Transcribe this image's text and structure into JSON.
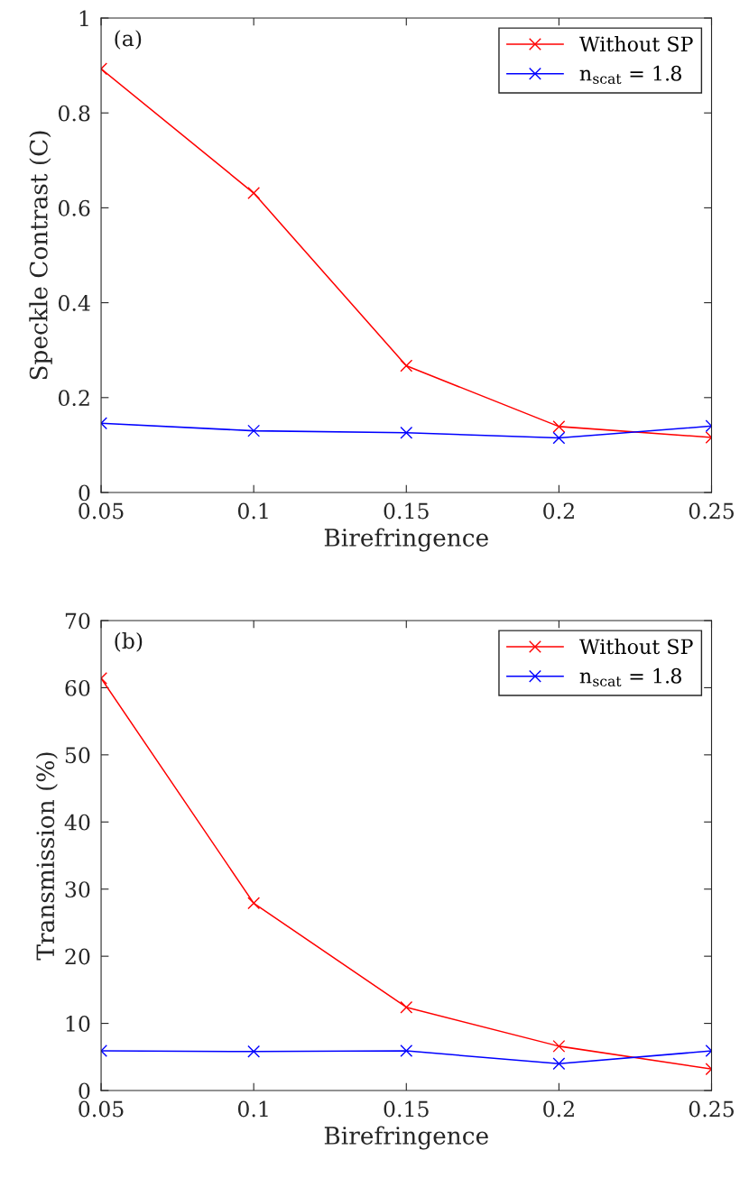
{
  "chart_data": [
    {
      "type": "line",
      "xlabel": "Birefringence",
      "ylabel": "Speckle Contrast (C)",
      "annotations": [
        "(a)"
      ],
      "x": [
        0.05,
        0.1,
        0.15,
        0.2,
        0.25
      ],
      "series": [
        {
          "name": "Without SP",
          "color": "#ff0000",
          "values": [
            0.893,
            0.631,
            0.267,
            0.139,
            0.116
          ]
        },
        {
          "name": "n$_{scat}$ = 1.8",
          "color": "#0000ff",
          "values": [
            0.146,
            0.13,
            0.126,
            0.115,
            0.14
          ]
        }
      ],
      "xlim": [
        0.05,
        0.25
      ],
      "xticks": [
        0.05,
        0.1,
        0.15,
        0.2,
        0.25
      ],
      "ylim": [
        0,
        1
      ],
      "yticks": [
        0,
        0.2,
        0.4,
        0.6,
        0.8,
        1
      ],
      "legend": "top right",
      "marker": "cross",
      "line_style": "solid",
      "grid": false
    },
    {
      "type": "line",
      "xlabel": "Birefringence",
      "ylabel": "Transmission (%)",
      "annotations": [
        "(b)"
      ],
      "x": [
        0.05,
        0.1,
        0.15,
        0.2,
        0.25
      ],
      "series": [
        {
          "name": "Without SP",
          "color": "#ff0000",
          "values": [
            61.4,
            27.9,
            12.4,
            6.6,
            3.2
          ]
        },
        {
          "name": "n$_{scat}$ = 1.8",
          "color": "#0000ff",
          "values": [
            5.9,
            5.8,
            5.9,
            4.0,
            5.9
          ]
        }
      ],
      "xlim": [
        0.05,
        0.25
      ],
      "xticks": [
        0.05,
        0.1,
        0.15,
        0.2,
        0.25
      ],
      "ylim": [
        0,
        70
      ],
      "yticks": [
        0,
        10,
        20,
        30,
        40,
        50,
        60,
        70
      ],
      "legend": "top right",
      "marker": "cross",
      "line_style": "solid",
      "grid": false
    }
  ]
}
